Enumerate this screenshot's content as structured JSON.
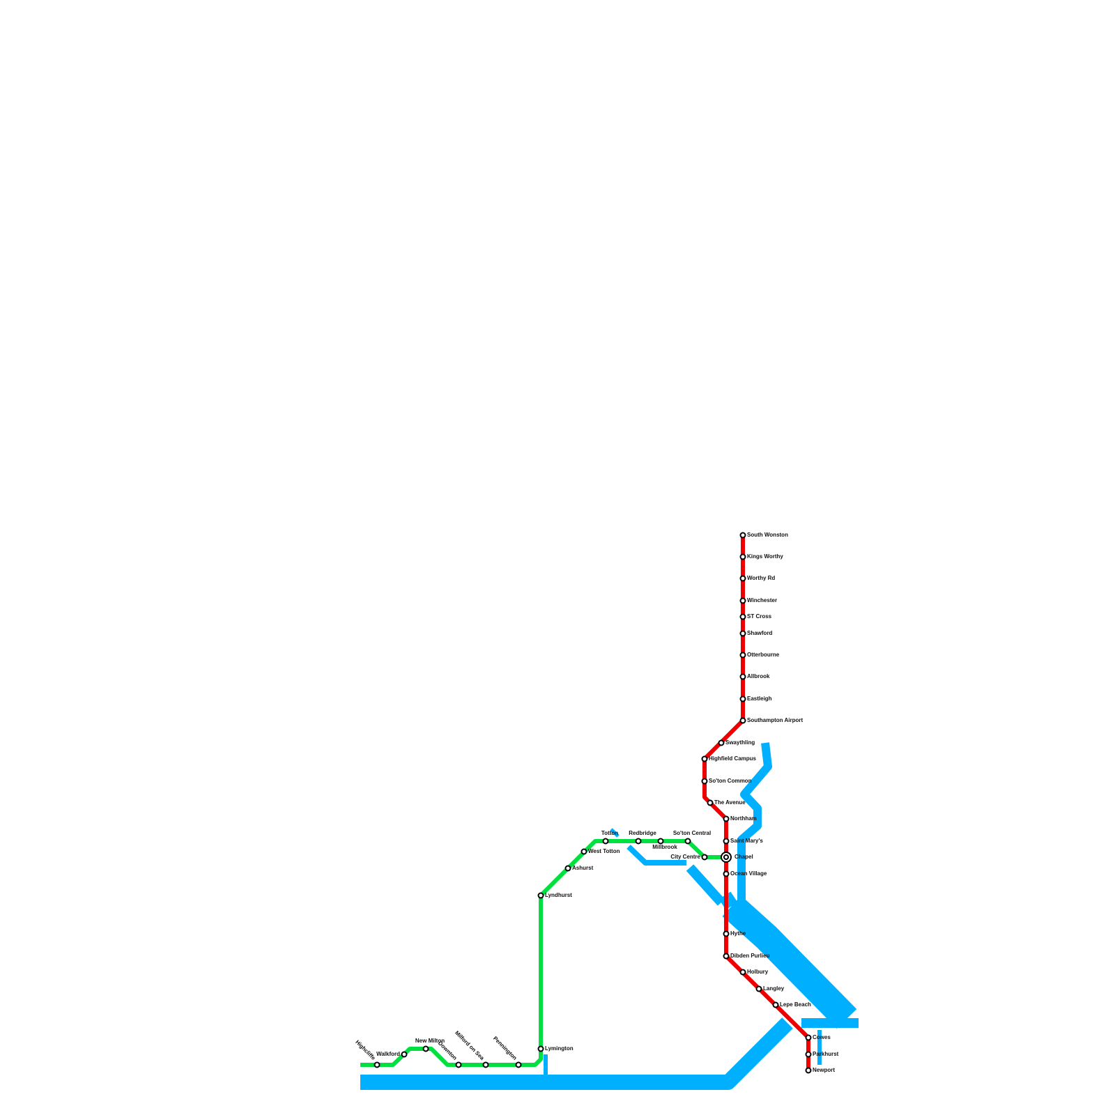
{
  "red_line": {
    "color": "#ee0000",
    "stations": [
      "South Wonston",
      "Kings Worthy",
      "Worthy Rd",
      "Winchester",
      "ST Cross",
      "Shawford",
      "Otterbourne",
      "Allbrook",
      "Eastleigh",
      "Southampton Airport",
      "Swaythling",
      "Highfield Campus",
      "So'ton Common",
      "The Avenue",
      "Northham",
      "Saint Mary's",
      "Ocean Village",
      "Hythe",
      "Dibden Purlieu",
      "Holbury",
      "Langley",
      "Lepe Beach",
      "Cowes",
      "Parkhurst",
      "Newport"
    ]
  },
  "green_line": {
    "color": "#00e040",
    "stations": [
      "Highcliffe",
      "Walkford",
      "New Milton",
      "Downton",
      "Milford on Sea",
      "Pennington",
      "Lymington",
      "Lyndhurst",
      "Ashurst",
      "West Totton",
      "Totton",
      "Redbridge",
      "Millbrook",
      "So'ton Central",
      "City Centre"
    ]
  },
  "interchange": "Chapel"
}
